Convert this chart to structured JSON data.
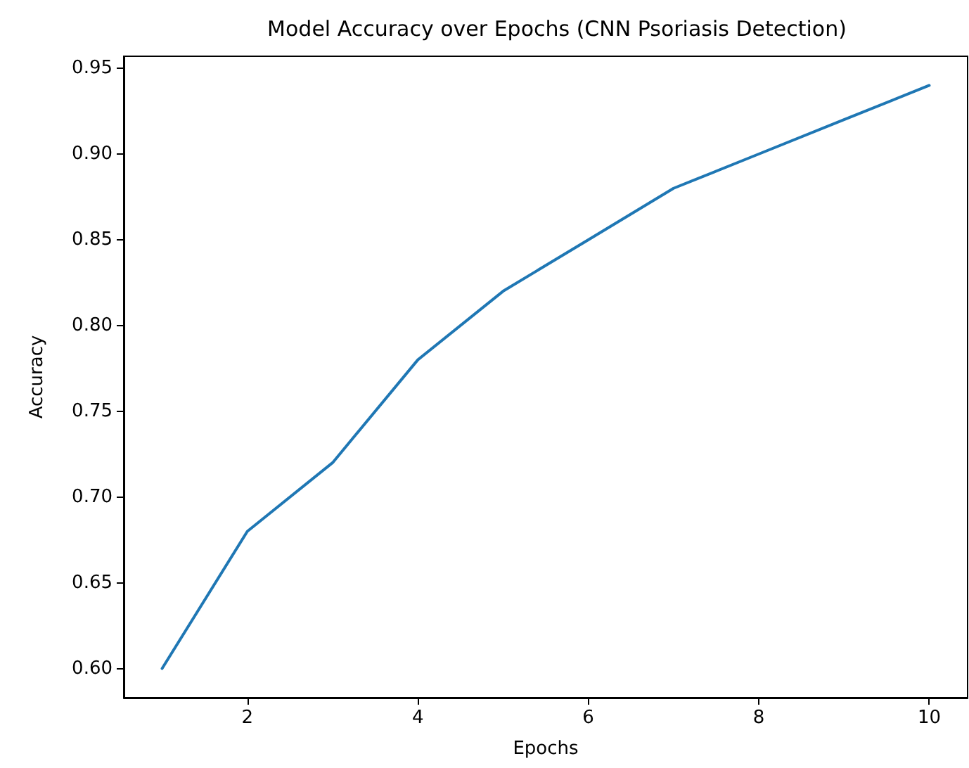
{
  "chart_data": {
    "type": "line",
    "title": "Model Accuracy over Epochs (CNN Psoriasis Detection)",
    "xlabel": "Epochs",
    "ylabel": "Accuracy",
    "x": [
      1,
      2,
      3,
      4,
      5,
      6,
      7,
      8,
      9,
      10
    ],
    "series": [
      {
        "color": "#1f77b4",
        "values": [
          0.6,
          0.68,
          0.72,
          0.78,
          0.82,
          0.85,
          0.88,
          0.9,
          0.92,
          0.94
        ]
      }
    ],
    "xlim": [
      0.55,
      10.45
    ],
    "xticks": [
      2,
      4,
      6,
      8,
      10
    ],
    "ylim": [
      0.583,
      0.957
    ],
    "yticks": [
      {
        "value": 0.6,
        "label": "0.60"
      },
      {
        "value": 0.65,
        "label": "0.65"
      },
      {
        "value": 0.7,
        "label": "0.70"
      },
      {
        "value": 0.75,
        "label": "0.75"
      },
      {
        "value": 0.8,
        "label": "0.80"
      },
      {
        "value": 0.85,
        "label": "0.85"
      },
      {
        "value": 0.9,
        "label": "0.90"
      },
      {
        "value": 0.95,
        "label": "0.95"
      }
    ],
    "grid": false,
    "marker": "none",
    "line_style": "solid"
  }
}
